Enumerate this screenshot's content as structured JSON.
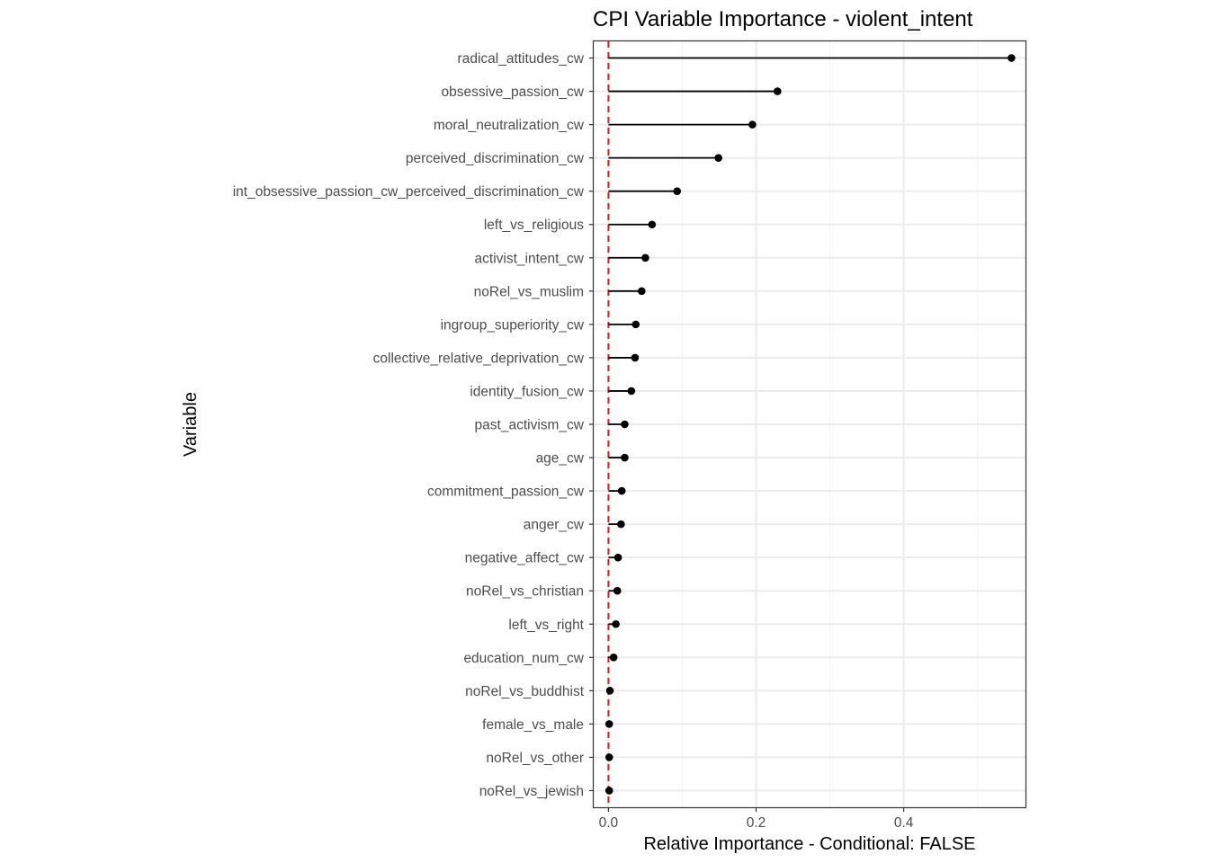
{
  "chart_data": {
    "type": "lollipop",
    "title": "CPI Variable Importance - violent_intent",
    "xlabel": "Relative Importance - Conditional: FALSE",
    "ylabel": "Variable",
    "xlim": [
      -0.02,
      0.565
    ],
    "x_ticks": [
      0.0,
      0.2,
      0.4
    ],
    "x_tick_labels": [
      "0.0",
      "0.2",
      "0.4"
    ],
    "reference_line": {
      "x": 0,
      "style": "dashed",
      "color": "#e41a1c"
    },
    "grid": true,
    "variables": [
      "radical_attitudes_cw",
      "obsessive_passion_cw",
      "moral_neutralization_cw",
      "perceived_discrimination_cw",
      "int_obsessive_passion_cw_perceived_discrimination_cw",
      "left_vs_religious",
      "activist_intent_cw",
      "noRel_vs_muslim",
      "ingroup_superiority_cw",
      "collective_relative_deprivation_cw",
      "identity_fusion_cw",
      "past_activism_cw",
      "age_cw",
      "commitment_passion_cw",
      "anger_cw",
      "negative_affect_cw",
      "noRel_vs_christian",
      "left_vs_right",
      "education_num_cw",
      "noRel_vs_buddhist",
      "female_vs_male",
      "noRel_vs_other",
      "noRel_vs_jewish"
    ],
    "values": [
      0.546,
      0.229,
      0.195,
      0.149,
      0.093,
      0.059,
      0.05,
      0.045,
      0.037,
      0.036,
      0.031,
      0.022,
      0.022,
      0.018,
      0.017,
      0.013,
      0.012,
      0.01,
      0.007,
      0.002,
      0.001,
      0.001,
      0.001
    ]
  },
  "colors": {
    "point": "#000000",
    "segment": "#000000",
    "reference": "#e41a1c",
    "grid_major": "#ebebeb",
    "grid_minor": "#f5f5f5",
    "panel_border": "#333333"
  }
}
